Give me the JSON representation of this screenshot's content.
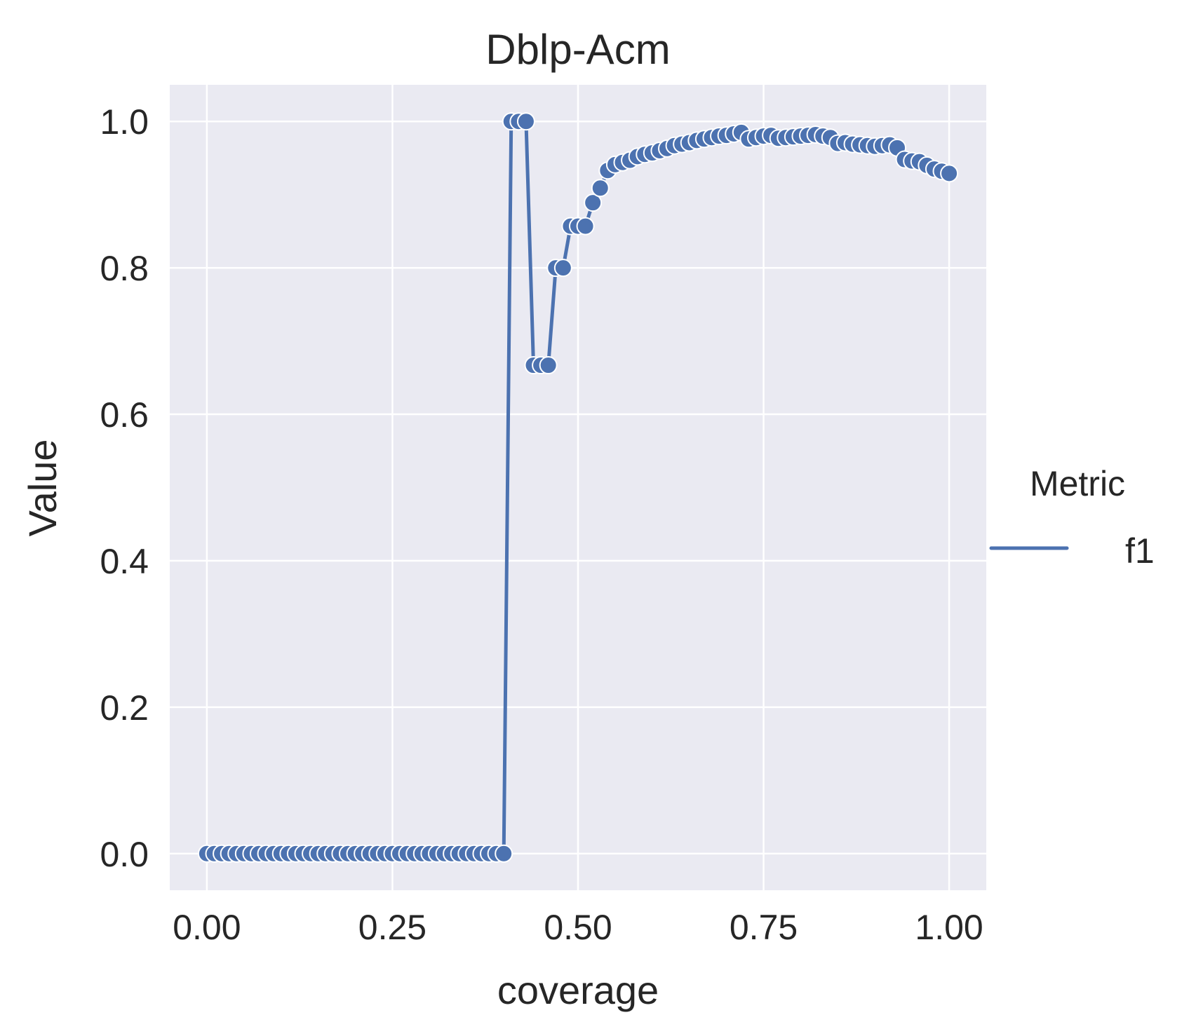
{
  "chart_data": {
    "type": "line",
    "title": "Dblp-Acm",
    "xlabel": "coverage",
    "ylabel": "Value",
    "xlim": [
      -0.05,
      1.05
    ],
    "ylim": [
      -0.05,
      1.05
    ],
    "xticks": [
      0.0,
      0.25,
      0.5,
      0.75,
      1.0
    ],
    "xtick_labels": [
      "0.00",
      "0.25",
      "0.50",
      "0.75",
      "1.00"
    ],
    "yticks": [
      0.0,
      0.2,
      0.4,
      0.6,
      0.8,
      1.0
    ],
    "ytick_labels": [
      "0.0",
      "0.2",
      "0.4",
      "0.6",
      "0.8",
      "1.0"
    ],
    "grid": true,
    "legend": {
      "title": "Metric",
      "placement": "center-right outside"
    },
    "colors": {
      "line": "#4c72b0",
      "background": "#eaeaf2",
      "grid": "#ffffff"
    },
    "series": [
      {
        "name": "f1",
        "x": [
          0.0,
          0.01,
          0.02,
          0.03,
          0.04,
          0.05,
          0.06,
          0.07,
          0.08,
          0.09,
          0.1,
          0.11,
          0.12,
          0.13,
          0.14,
          0.15,
          0.16,
          0.17,
          0.18,
          0.19,
          0.2,
          0.21,
          0.22,
          0.23,
          0.24,
          0.25,
          0.26,
          0.27,
          0.28,
          0.29,
          0.3,
          0.31,
          0.32,
          0.33,
          0.34,
          0.35,
          0.36,
          0.37,
          0.38,
          0.39,
          0.4,
          0.41,
          0.42,
          0.43,
          0.44,
          0.45,
          0.46,
          0.47,
          0.48,
          0.49,
          0.5,
          0.51,
          0.52,
          0.53,
          0.54,
          0.55,
          0.56,
          0.57,
          0.58,
          0.59,
          0.6,
          0.61,
          0.62,
          0.63,
          0.64,
          0.65,
          0.66,
          0.67,
          0.68,
          0.69,
          0.7,
          0.71,
          0.72,
          0.73,
          0.74,
          0.75,
          0.76,
          0.77,
          0.78,
          0.79,
          0.8,
          0.81,
          0.82,
          0.83,
          0.84,
          0.85,
          0.86,
          0.87,
          0.88,
          0.89,
          0.9,
          0.91,
          0.92,
          0.93,
          0.94,
          0.95,
          0.96,
          0.97,
          0.98,
          0.99,
          1.0
        ],
        "y": [
          0.0,
          0.0,
          0.0,
          0.0,
          0.0,
          0.0,
          0.0,
          0.0,
          0.0,
          0.0,
          0.0,
          0.0,
          0.0,
          0.0,
          0.0,
          0.0,
          0.0,
          0.0,
          0.0,
          0.0,
          0.0,
          0.0,
          0.0,
          0.0,
          0.0,
          0.0,
          0.0,
          0.0,
          0.0,
          0.0,
          0.0,
          0.0,
          0.0,
          0.0,
          0.0,
          0.0,
          0.0,
          0.0,
          0.0,
          0.0,
          0.0,
          1.0,
          1.0,
          1.0,
          0.667,
          0.667,
          0.667,
          0.8,
          0.8,
          0.857,
          0.857,
          0.857,
          0.889,
          0.909,
          0.933,
          0.941,
          0.944,
          0.947,
          0.952,
          0.955,
          0.957,
          0.96,
          0.963,
          0.967,
          0.969,
          0.971,
          0.974,
          0.976,
          0.978,
          0.98,
          0.981,
          0.983,
          0.985,
          0.976,
          0.978,
          0.98,
          0.981,
          0.977,
          0.978,
          0.979,
          0.98,
          0.981,
          0.982,
          0.98,
          0.978,
          0.97,
          0.971,
          0.969,
          0.968,
          0.967,
          0.966,
          0.967,
          0.968,
          0.964,
          0.948,
          0.946,
          0.945,
          0.94,
          0.935,
          0.932,
          0.929
        ]
      }
    ]
  }
}
